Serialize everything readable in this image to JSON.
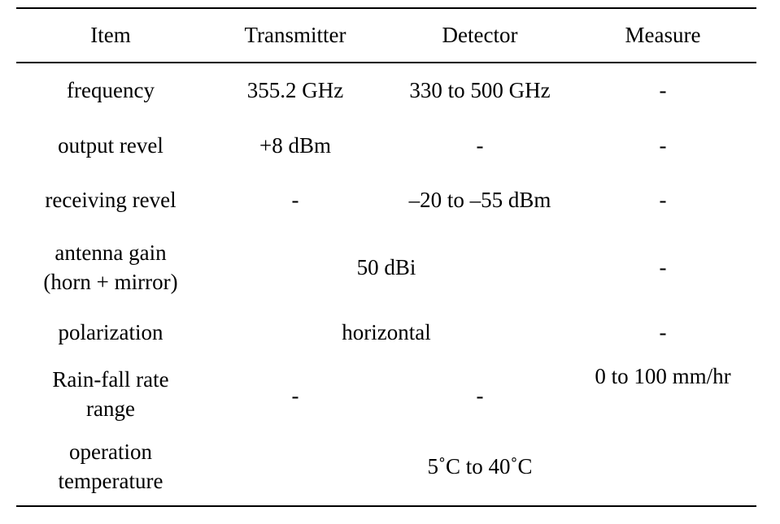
{
  "table": {
    "headers": {
      "item": "Item",
      "transmitter": "Transmitter",
      "detector": "Detector",
      "measure": "Measure"
    },
    "rows": {
      "frequency": {
        "item": "frequency",
        "transmitter": "355.2 GHz",
        "detector": "330 to 500 GHz",
        "measure": "-"
      },
      "output_revel": {
        "item": "output revel",
        "transmitter": "+8 dBm",
        "detector": "-",
        "measure": "-"
      },
      "receiving_revel": {
        "item": "receiving revel",
        "transmitter": "-",
        "detector": "–20 to –55 dBm",
        "measure": "-"
      },
      "antenna_gain": {
        "item_line1": "antenna gain",
        "item_line2": "(horn + mirror)",
        "transmitter_detector": "50 dBi",
        "measure": "-"
      },
      "polarization": {
        "item": "polarization",
        "transmitter_detector": "horizontal",
        "measure": "-"
      },
      "rain_fall": {
        "item_line1": "Rain-fall rate",
        "item_line2": "range",
        "transmitter": "-",
        "detector": "-",
        "measure": "0 to 100 mm/hr"
      },
      "operation_temperature": {
        "item_line1": "operation",
        "item_line2": "temperature",
        "value": "5˚C to 40˚C"
      }
    }
  }
}
